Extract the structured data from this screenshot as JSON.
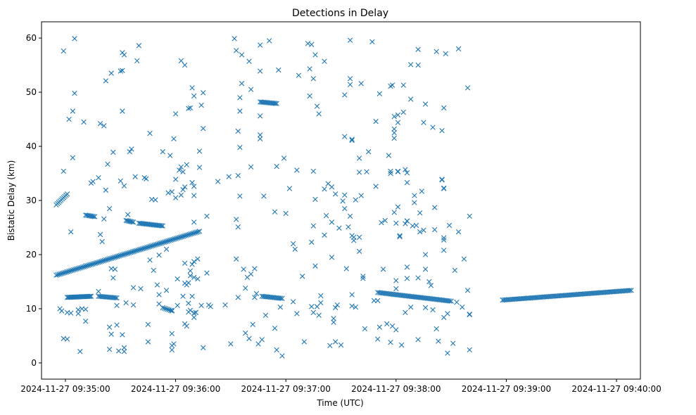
{
  "chart_data": {
    "type": "scatter",
    "title": "Detections in Delay",
    "xlabel": "Time (UTC)",
    "ylabel": "Bistatic Delay (km)",
    "x_unit": "seconds after 2024-11-27 09:34:00",
    "xlim": [
      47,
      373
    ],
    "ylim": [
      -3,
      63
    ],
    "x_ticks": [
      {
        "value": 60,
        "label": "2024-11-27 09:35:00"
      },
      {
        "value": 120,
        "label": "2024-11-27 09:36:00"
      },
      {
        "value": 180,
        "label": "2024-11-27 09:37:00"
      },
      {
        "value": 240,
        "label": "2024-11-27 09:38:00"
      },
      {
        "value": 300,
        "label": "2024-11-27 09:39:00"
      },
      {
        "value": 360,
        "label": "2024-11-27 09:40:00"
      }
    ],
    "y_ticks": [
      0,
      10,
      20,
      30,
      40,
      50,
      60
    ],
    "grid": false,
    "marker": "x",
    "color": "#1f77b4",
    "tracks": [
      {
        "x0": 55,
        "x1": 133,
        "y0": 16.2,
        "y1": 24.3,
        "step": 0.8
      },
      {
        "x0": 55,
        "x1": 61,
        "y0": 29.2,
        "y1": 31.2,
        "step": 0.7
      },
      {
        "x0": 61,
        "x1": 74,
        "y0": 12.1,
        "y1": 12.3,
        "step": 0.6
      },
      {
        "x0": 78,
        "x1": 88,
        "y0": 12.3,
        "y1": 12.0,
        "step": 0.8
      },
      {
        "x0": 71,
        "x1": 76,
        "y0": 27.3,
        "y1": 27.0,
        "step": 0.7
      },
      {
        "x0": 93,
        "x1": 97,
        "y0": 26.3,
        "y1": 26.0,
        "step": 0.7
      },
      {
        "x0": 100,
        "x1": 113,
        "y0": 25.8,
        "y1": 25.3,
        "step": 0.7
      },
      {
        "x0": 113,
        "x1": 118,
        "y0": 10.2,
        "y1": 9.6,
        "step": 0.8
      },
      {
        "x0": 166,
        "x1": 175,
        "y0": 48.2,
        "y1": 47.9,
        "step": 0.7
      },
      {
        "x0": 167,
        "x1": 178,
        "y0": 12.3,
        "y1": 11.9,
        "step": 0.8
      },
      {
        "x0": 230,
        "x1": 270,
        "y0": 13.0,
        "y1": 11.4,
        "step": 0.8
      },
      {
        "x0": 298,
        "x1": 368,
        "y0": 11.6,
        "y1": 13.4,
        "step": 0.8
      }
    ],
    "points": [
      [
        57,
        10
      ],
      [
        58,
        9.6
      ],
      [
        59,
        35.4
      ],
      [
        59,
        57.6
      ],
      [
        59,
        4.5
      ],
      [
        61,
        4.4
      ],
      [
        61,
        9.3
      ],
      [
        62,
        45
      ],
      [
        63,
        9.2
      ],
      [
        63,
        24.2
      ],
      [
        64,
        46.5
      ],
      [
        64,
        37.9
      ],
      [
        65,
        49.8
      ],
      [
        65,
        59.9
      ],
      [
        67,
        9.1
      ],
      [
        67,
        9.8
      ],
      [
        68,
        2.1
      ],
      [
        69,
        10
      ],
      [
        70,
        44.5
      ],
      [
        71,
        7.7
      ],
      [
        71,
        9.9
      ],
      [
        74,
        33.2
      ],
      [
        75,
        33.5
      ],
      [
        78,
        34.2
      ],
      [
        78,
        13.2
      ],
      [
        79,
        44.2
      ],
      [
        79,
        23.7
      ],
      [
        80,
        22.4
      ],
      [
        81,
        43.8
      ],
      [
        81,
        26.6
      ],
      [
        82,
        52.1
      ],
      [
        82,
        31.9
      ],
      [
        83,
        36.7
      ],
      [
        84,
        2.5
      ],
      [
        84,
        6.6
      ],
      [
        84,
        28.5
      ],
      [
        85,
        5.3
      ],
      [
        85,
        53.5
      ],
      [
        85,
        17.4
      ],
      [
        86,
        38.9
      ],
      [
        86,
        15.7
      ],
      [
        87,
        17.3
      ],
      [
        88,
        7
      ],
      [
        88,
        10.6
      ],
      [
        89,
        2.2
      ],
      [
        90,
        33.6
      ],
      [
        90,
        53.9
      ],
      [
        91,
        57.3
      ],
      [
        91,
        46.5
      ],
      [
        91,
        5.2
      ],
      [
        91,
        54
      ],
      [
        92,
        32.7
      ],
      [
        92,
        2.8
      ],
      [
        92,
        2.1
      ],
      [
        92,
        56.9
      ],
      [
        93,
        11.1
      ],
      [
        94,
        27.4
      ],
      [
        95,
        39
      ],
      [
        96,
        39.5
      ],
      [
        97,
        10.7
      ],
      [
        97,
        13.9
      ],
      [
        98,
        34.4
      ],
      [
        99,
        55.8
      ],
      [
        100,
        58.6
      ],
      [
        101,
        13.7
      ],
      [
        103,
        34.2
      ],
      [
        104,
        34
      ],
      [
        105,
        7.1
      ],
      [
        105,
        3.9
      ],
      [
        106,
        42.4
      ],
      [
        106,
        19
      ],
      [
        107,
        30.2
      ],
      [
        108,
        17.1
      ],
      [
        109,
        30.1
      ],
      [
        110,
        14.4
      ],
      [
        111,
        19.9
      ],
      [
        111,
        10.9
      ],
      [
        111,
        12.6
      ],
      [
        113,
        39
      ],
      [
        115,
        21
      ],
      [
        115,
        13.4
      ],
      [
        116,
        31.4
      ],
      [
        117,
        38.3
      ],
      [
        118,
        31.6
      ],
      [
        118,
        9.7
      ],
      [
        118,
        2.4
      ],
      [
        118,
        5.4
      ],
      [
        118,
        3.2
      ],
      [
        119,
        3.5
      ],
      [
        119,
        41.4
      ],
      [
        120,
        30.5
      ],
      [
        120,
        33.9
      ],
      [
        120,
        46
      ],
      [
        121,
        15.5
      ],
      [
        121,
        10.6
      ],
      [
        122,
        35.6
      ],
      [
        123,
        31
      ],
      [
        123,
        55.8
      ],
      [
        123,
        36.2
      ],
      [
        124,
        32
      ],
      [
        124,
        35.3
      ],
      [
        124,
        12.3
      ],
      [
        125,
        14.7
      ],
      [
        125,
        32.5
      ],
      [
        125,
        55
      ],
      [
        125,
        18.4
      ],
      [
        125,
        7.2
      ],
      [
        126,
        36.6
      ],
      [
        126,
        14.4
      ],
      [
        126,
        6.8
      ],
      [
        127,
        47
      ],
      [
        127,
        14.8
      ],
      [
        127,
        11
      ],
      [
        127,
        9.4
      ],
      [
        128,
        47.1
      ],
      [
        128,
        16.1
      ],
      [
        128,
        17
      ],
      [
        128,
        9.7
      ],
      [
        129,
        50.8
      ],
      [
        129,
        33.3
      ],
      [
        129,
        18.2
      ],
      [
        129,
        12.3
      ],
      [
        130,
        49.3
      ],
      [
        130,
        32.6
      ],
      [
        130,
        30.9
      ],
      [
        130,
        26
      ],
      [
        130,
        15.8
      ],
      [
        130,
        8.4
      ],
      [
        130,
        18.7
      ],
      [
        130,
        9.2
      ],
      [
        131,
        9.3
      ],
      [
        131,
        9.3
      ],
      [
        132,
        19.2
      ],
      [
        132,
        15.5
      ],
      [
        133,
        36.1
      ],
      [
        133,
        39.1
      ],
      [
        134,
        47.6
      ],
      [
        134,
        10.6
      ],
      [
        135,
        49.9
      ],
      [
        135,
        43.3
      ],
      [
        135,
        2.8
      ],
      [
        137,
        27.1
      ],
      [
        137,
        16.6
      ],
      [
        138,
        10.7
      ],
      [
        139,
        10.4
      ],
      [
        143,
        33.5
      ],
      [
        147,
        10.7
      ],
      [
        149,
        34.4
      ],
      [
        150,
        3.5
      ],
      [
        152,
        59.9
      ],
      [
        153,
        57.7
      ],
      [
        153,
        19.2
      ],
      [
        153,
        26.5
      ],
      [
        154,
        12.1
      ],
      [
        154,
        34.6
      ],
      [
        154,
        42.8
      ],
      [
        154,
        25.1
      ],
      [
        155,
        46.5
      ],
      [
        155,
        49
      ],
      [
        155,
        39.8
      ],
      [
        155,
        30.8
      ],
      [
        156,
        51.6
      ],
      [
        156,
        56.9
      ],
      [
        157,
        17.3
      ],
      [
        158,
        5.5
      ],
      [
        158,
        13.8
      ],
      [
        159,
        15.8
      ],
      [
        160,
        4.5
      ],
      [
        160,
        55.7
      ],
      [
        161,
        16.4
      ],
      [
        161,
        36.2
      ],
      [
        161,
        50.5
      ],
      [
        162,
        7.1
      ],
      [
        163,
        17.4
      ],
      [
        163,
        12.1
      ],
      [
        164,
        12.8
      ],
      [
        165,
        3.5
      ],
      [
        166,
        41.4
      ],
      [
        166,
        42.1
      ],
      [
        166,
        53.9
      ],
      [
        166,
        58.7
      ],
      [
        166,
        45.6
      ],
      [
        167,
        4.3
      ],
      [
        168,
        30.8
      ],
      [
        169,
        8.8
      ],
      [
        171,
        59.5
      ],
      [
        174,
        27.9
      ],
      [
        174,
        6.4
      ],
      [
        175,
        36.3
      ],
      [
        175,
        2.4
      ],
      [
        176,
        54.1
      ],
      [
        177,
        10.3
      ],
      [
        178,
        1.3
      ],
      [
        179,
        37.8
      ],
      [
        180,
        27.6
      ],
      [
        182,
        32.2
      ],
      [
        184,
        11.3
      ],
      [
        184,
        22
      ],
      [
        185,
        21
      ],
      [
        186,
        9.1
      ],
      [
        186,
        35.6
      ],
      [
        187,
        53.1
      ],
      [
        189,
        16
      ],
      [
        190,
        3.9
      ],
      [
        192,
        59
      ],
      [
        193,
        49.3
      ],
      [
        193,
        54.3
      ],
      [
        194,
        58.8
      ],
      [
        194,
        22.3
      ],
      [
        194,
        10.4
      ],
      [
        195,
        9.3
      ],
      [
        195,
        35.4
      ],
      [
        195,
        52.5
      ],
      [
        195,
        25.3
      ],
      [
        196,
        30.2
      ],
      [
        196,
        56.9
      ],
      [
        196,
        17.9
      ],
      [
        197,
        47.4
      ],
      [
        197,
        10.4
      ],
      [
        198,
        8.8
      ],
      [
        198,
        46
      ],
      [
        199,
        11.1
      ],
      [
        199,
        12.4
      ],
      [
        201,
        55.7
      ],
      [
        201,
        32.1
      ],
      [
        201,
        23.6
      ],
      [
        202,
        27.2
      ],
      [
        203,
        33.1
      ],
      [
        204,
        3.2
      ],
      [
        205,
        26
      ],
      [
        205,
        19.5
      ],
      [
        205,
        32.5
      ],
      [
        206,
        8.2
      ],
      [
        206,
        7.5
      ],
      [
        207,
        10.2
      ],
      [
        207,
        3.9
      ],
      [
        207,
        31.2
      ],
      [
        208,
        10.7
      ],
      [
        209,
        24.9
      ],
      [
        210,
        3.3
      ],
      [
        211,
        29.9
      ],
      [
        212,
        31
      ],
      [
        212,
        41.8
      ],
      [
        212,
        49.5
      ],
      [
        212,
        28.5
      ],
      [
        213,
        17.4
      ],
      [
        214,
        25.1
      ],
      [
        215,
        59.6
      ],
      [
        215,
        52.5
      ],
      [
        215,
        51.4
      ],
      [
        215,
        27.1
      ],
      [
        216,
        41.1
      ],
      [
        216,
        41.3
      ],
      [
        216,
        23.5
      ],
      [
        216,
        12.6
      ],
      [
        216,
        10.5
      ],
      [
        217,
        23.2
      ],
      [
        217,
        22.6
      ],
      [
        218,
        30.1
      ],
      [
        218,
        10.3
      ],
      [
        220,
        23.2
      ],
      [
        220,
        35.2
      ],
      [
        220,
        20.6
      ],
      [
        220,
        37.8
      ],
      [
        221,
        30.9
      ],
      [
        221,
        51.6
      ],
      [
        222,
        15.6
      ],
      [
        222,
        16
      ],
      [
        223,
        6.3
      ],
      [
        224,
        35.3
      ],
      [
        225,
        39
      ],
      [
        227,
        59.3
      ],
      [
        228,
        11.5
      ],
      [
        229,
        32.6
      ],
      [
        229,
        44.6
      ],
      [
        230,
        11.5
      ],
      [
        230,
        4.4
      ],
      [
        231,
        49.7
      ],
      [
        231,
        6.6
      ],
      [
        232,
        25.9
      ],
      [
        233,
        17.3
      ],
      [
        234,
        26.3
      ],
      [
        235,
        7.2
      ],
      [
        236,
        38.3
      ],
      [
        237,
        51.1
      ],
      [
        237,
        35.4
      ],
      [
        237,
        35
      ],
      [
        237,
        3.8
      ],
      [
        238,
        51.3
      ],
      [
        238,
        6.8
      ],
      [
        239,
        27.8
      ],
      [
        239,
        42.5
      ],
      [
        239,
        41.5
      ],
      [
        239,
        45.5
      ],
      [
        239,
        43.2
      ],
      [
        240,
        25.8
      ],
      [
        240,
        13.7
      ],
      [
        240,
        6.1
      ],
      [
        240,
        15.2
      ],
      [
        241,
        35.3
      ],
      [
        241,
        28.8
      ],
      [
        241,
        44.4
      ],
      [
        241,
        45.8
      ],
      [
        241,
        35.4
      ],
      [
        242,
        23.5
      ],
      [
        242,
        23.3
      ],
      [
        243,
        3.3
      ],
      [
        244,
        46.3
      ],
      [
        244,
        51.3
      ],
      [
        245,
        25.7
      ],
      [
        245,
        35.7
      ],
      [
        245,
        9.3
      ],
      [
        246,
        26.2
      ],
      [
        246,
        15.6
      ],
      [
        246,
        35.1
      ],
      [
        246,
        33.3
      ],
      [
        246,
        26.2
      ],
      [
        246,
        17.7
      ],
      [
        248,
        48.7
      ],
      [
        248,
        55.1
      ],
      [
        248,
        10.3
      ],
      [
        249,
        25.3
      ],
      [
        250,
        30.9
      ],
      [
        250,
        29.6
      ],
      [
        251,
        25.4
      ],
      [
        252,
        57.9
      ],
      [
        252,
        55
      ],
      [
        252,
        4.3
      ],
      [
        252,
        15.7
      ],
      [
        253,
        24.2
      ],
      [
        253,
        27.7
      ],
      [
        254,
        31.7
      ],
      [
        255,
        24.5
      ],
      [
        255,
        44.4
      ],
      [
        256,
        47.8
      ],
      [
        256,
        10.2
      ],
      [
        256,
        17.3
      ],
      [
        256,
        20
      ],
      [
        258,
        15
      ],
      [
        259,
        14.3
      ],
      [
        260,
        43.5
      ],
      [
        260,
        9.8
      ],
      [
        261,
        24.6
      ],
      [
        261,
        28.7
      ],
      [
        262,
        57.5
      ],
      [
        262,
        6.3
      ],
      [
        263,
        4
      ],
      [
        265,
        33.8
      ],
      [
        265,
        42.9
      ],
      [
        265,
        33.9
      ],
      [
        266,
        32.3
      ],
      [
        266,
        32.2
      ],
      [
        266,
        20.8
      ],
      [
        266,
        22.7
      ],
      [
        266,
        23.1
      ],
      [
        266,
        8.4
      ],
      [
        266,
        47.1
      ],
      [
        267,
        57.1
      ],
      [
        268,
        1.8
      ],
      [
        268,
        9.1
      ],
      [
        269,
        25.4
      ],
      [
        271,
        3.6
      ],
      [
        272,
        17.1
      ],
      [
        273,
        11.2
      ],
      [
        274,
        24.2
      ],
      [
        274,
        58
      ],
      [
        276,
        10.3
      ],
      [
        277,
        19.2
      ],
      [
        279,
        50.8
      ],
      [
        279,
        13.4
      ],
      [
        280,
        9
      ],
      [
        280,
        27.1
      ],
      [
        280,
        2.4
      ],
      [
        280,
        8.9
      ]
    ]
  }
}
